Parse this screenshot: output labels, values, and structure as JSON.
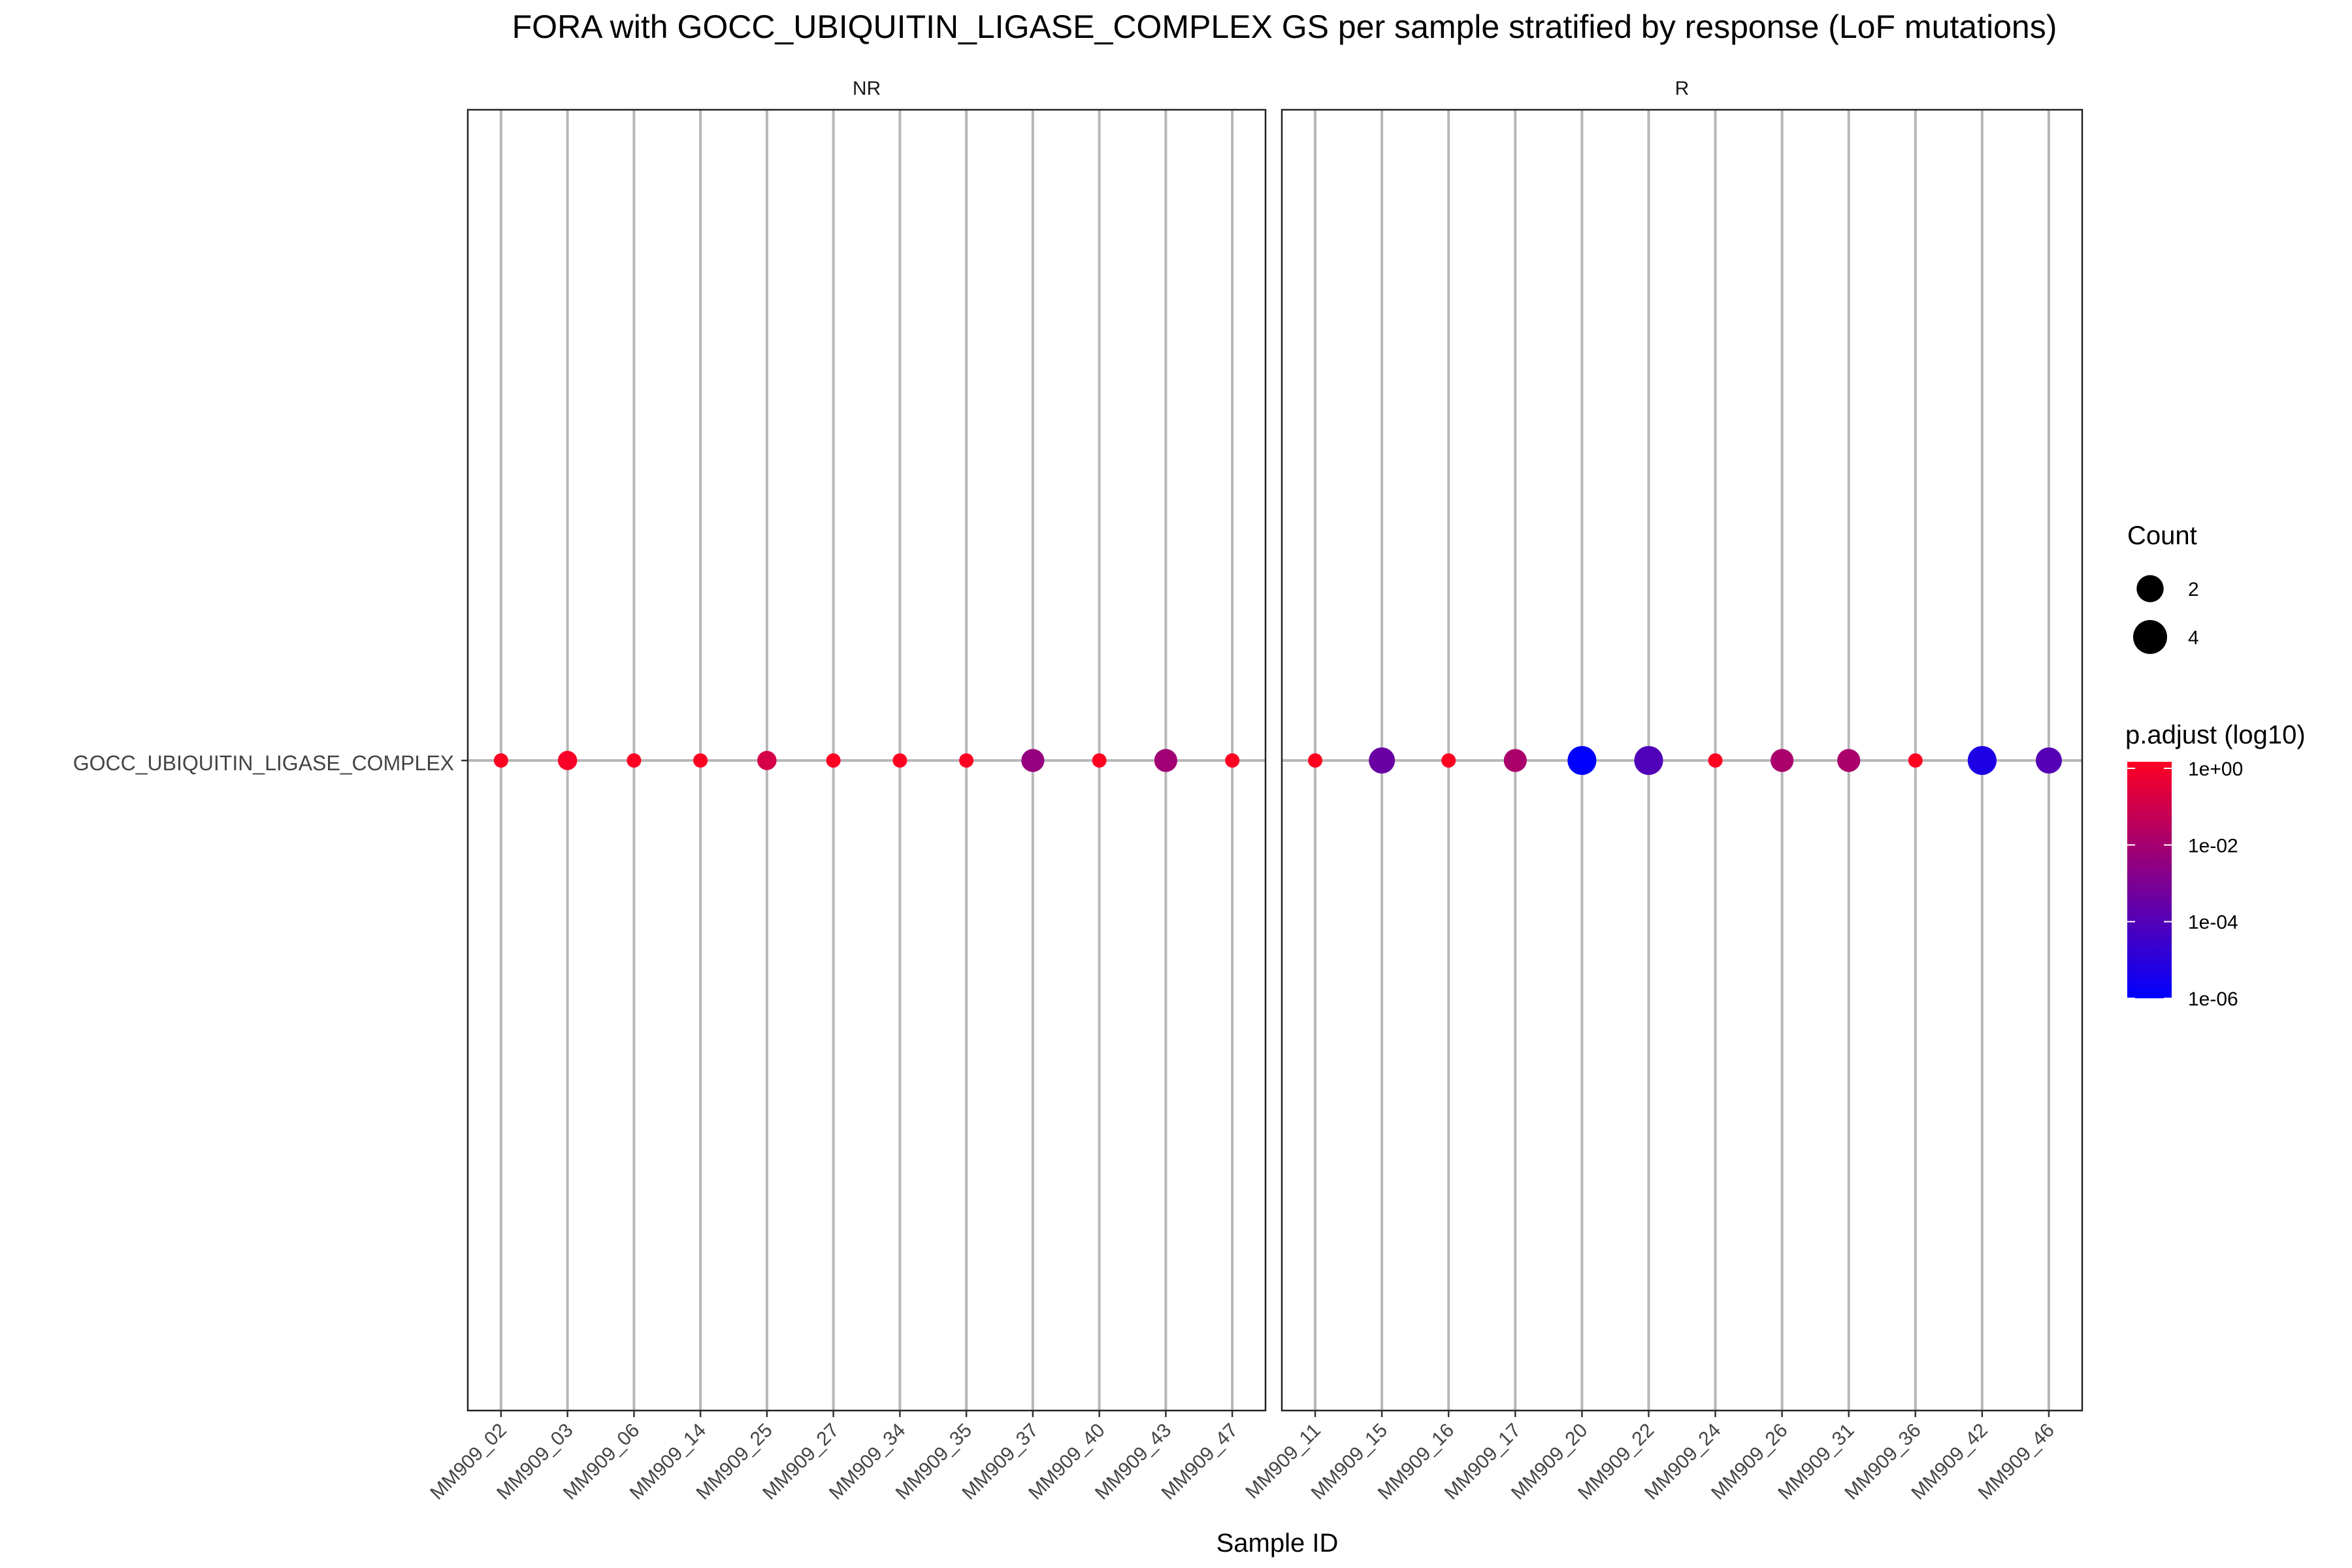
{
  "chart_data": {
    "type": "scatter",
    "title": "FORA with GOCC_UBIQUITIN_LIGASE_COMPLEX GS per sample stratified by response (LoF mutations)",
    "xlabel": "Sample ID",
    "ylabel": "",
    "y_categories": [
      "GOCC_UBIQUITIN_LIGASE_COMPLEX"
    ],
    "grid": true,
    "legend_position": "right",
    "panels": [
      {
        "label": "NR",
        "points": [
          {
            "sample": "MM909_02",
            "count": 1,
            "p_adjust": 1
          },
          {
            "sample": "MM909_03",
            "count": 2,
            "p_adjust": 0.7
          },
          {
            "sample": "MM909_06",
            "count": 1,
            "p_adjust": 1
          },
          {
            "sample": "MM909_14",
            "count": 1,
            "p_adjust": 1
          },
          {
            "sample": "MM909_25",
            "count": 2,
            "p_adjust": 0.1
          },
          {
            "sample": "MM909_27",
            "count": 1,
            "p_adjust": 1
          },
          {
            "sample": "MM909_34",
            "count": 1,
            "p_adjust": 1
          },
          {
            "sample": "MM909_35",
            "count": 1,
            "p_adjust": 1
          },
          {
            "sample": "MM909_37",
            "count": 3,
            "p_adjust": 0.003
          },
          {
            "sample": "MM909_40",
            "count": 1,
            "p_adjust": 1
          },
          {
            "sample": "MM909_43",
            "count": 3,
            "p_adjust": 0.006
          },
          {
            "sample": "MM909_47",
            "count": 1,
            "p_adjust": 1
          }
        ]
      },
      {
        "label": "R",
        "points": [
          {
            "sample": "MM909_11",
            "count": 1,
            "p_adjust": 1
          },
          {
            "sample": "MM909_15",
            "count": 4,
            "p_adjust": 0.0003
          },
          {
            "sample": "MM909_16",
            "count": 1,
            "p_adjust": 1
          },
          {
            "sample": "MM909_17",
            "count": 3,
            "p_adjust": 0.01
          },
          {
            "sample": "MM909_20",
            "count": 5,
            "p_adjust": 1e-06
          },
          {
            "sample": "MM909_22",
            "count": 5,
            "p_adjust": 8e-05
          },
          {
            "sample": "MM909_24",
            "count": 1,
            "p_adjust": 1
          },
          {
            "sample": "MM909_26",
            "count": 3,
            "p_adjust": 0.01
          },
          {
            "sample": "MM909_31",
            "count": 3,
            "p_adjust": 0.01
          },
          {
            "sample": "MM909_36",
            "count": 1,
            "p_adjust": 1
          },
          {
            "sample": "MM909_42",
            "count": 5,
            "p_adjust": 5e-06
          },
          {
            "sample": "MM909_46",
            "count": 4,
            "p_adjust": 0.0001
          }
        ]
      }
    ],
    "size_legend": {
      "title": "Count",
      "entries": [
        {
          "label": "2",
          "value": 2
        },
        {
          "label": "4",
          "value": 4
        }
      ]
    },
    "color_legend": {
      "title": "p.adjust (log10)",
      "scale": "log10",
      "high_color": "#FF0022",
      "low_color": "#0000FF",
      "ticks": [
        {
          "label": "1e+00",
          "value": 1
        },
        {
          "label": "1e-02",
          "value": 0.01
        },
        {
          "label": "1e-04",
          "value": 0.0001
        },
        {
          "label": "1e-06",
          "value": 1e-06
        }
      ],
      "range": [
        1e-06,
        1
      ]
    }
  }
}
